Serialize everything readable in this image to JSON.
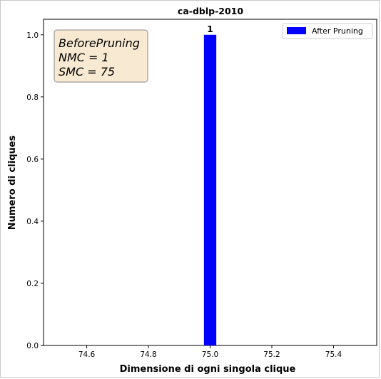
{
  "chart_data": {
    "type": "bar",
    "title": "ca-dblp-2010",
    "xlabel": "Dimensione di ogni singola clique",
    "ylabel": "Numero di cliques",
    "xlim": [
      74.46,
      75.54
    ],
    "ylim": [
      0.0,
      1.05
    ],
    "x_ticks": [
      "74.6",
      "74.8",
      "75.0",
      "75.2",
      "75.4"
    ],
    "y_ticks": [
      "0.0",
      "0.2",
      "0.4",
      "0.6",
      "0.8",
      "1.0"
    ],
    "bar_width": 0.04,
    "grid": false,
    "legend_position": "top-right",
    "series": [
      {
        "name": "After Pruning",
        "color": "#0000ff",
        "x": [
          75.0
        ],
        "values": [
          1
        ],
        "data_labels": [
          "1"
        ]
      }
    ],
    "annotation": {
      "lines": [
        "BeforePruning",
        "NMC = 1",
        "SMC = 75"
      ],
      "background": "#f8e9d2",
      "border": "#8a8a8a"
    }
  }
}
